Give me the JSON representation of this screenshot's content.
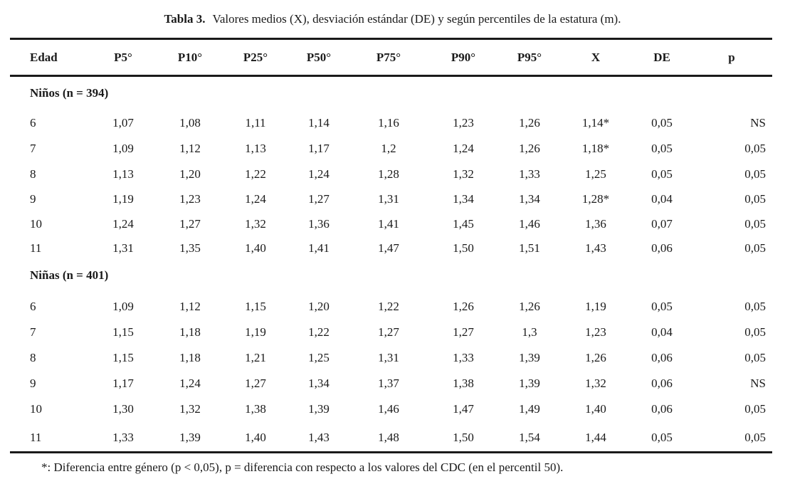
{
  "caption": {
    "label": "Tabla 3.",
    "text": "Valores medios (X), desviación estándar (DE) y según percentiles de la estatura (m)."
  },
  "headers": [
    "Edad",
    "P5°",
    "P10°",
    "P25°",
    "P50°",
    "P75°",
    "P90°",
    "P95°",
    "X",
    "DE",
    "p"
  ],
  "groups": [
    {
      "title": "Niños (n = 394)",
      "rows": [
        [
          "6",
          "1,07",
          "1,08",
          "1,11",
          "1,14",
          "1,16",
          "1,23",
          "1,26",
          "1,14*",
          "0,05",
          "NS"
        ],
        [
          "7",
          "1,09",
          "1,12",
          "1,13",
          "1,17",
          "1,2",
          "1,24",
          "1,26",
          "1,18*",
          "0,05",
          "0,05"
        ],
        [
          "8",
          "1,13",
          "1,20",
          "1,22",
          "1,24",
          "1,28",
          "1,32",
          "1,33",
          "1,25",
          "0,05",
          "0,05"
        ],
        [
          "9",
          "1,19",
          "1,23",
          "1,24",
          "1,27",
          "1,31",
          "1,34",
          "1,34",
          "1,28*",
          "0,04",
          "0,05"
        ],
        [
          "10",
          "1,24",
          "1,27",
          "1,32",
          "1,36",
          "1,41",
          "1,45",
          "1,46",
          "1,36",
          "0,07",
          "0,05"
        ],
        [
          "11",
          "1,31",
          "1,35",
          "1,40",
          "1,41",
          "1,47",
          "1,50",
          "1,51",
          "1,43",
          "0,06",
          "0,05"
        ]
      ]
    },
    {
      "title": "Niñas (n = 401)",
      "rows": [
        [
          "6",
          "1,09",
          "1,12",
          "1,15",
          "1,20",
          "1,22",
          "1,26",
          "1,26",
          "1,19",
          "0,05",
          "0,05"
        ],
        [
          "7",
          "1,15",
          "1,18",
          "1,19",
          "1,22",
          "1,27",
          "1,27",
          "1,3",
          "1,23",
          "0,04",
          "0,05"
        ],
        [
          "8",
          "1,15",
          "1,18",
          "1,21",
          "1,25",
          "1,31",
          "1,33",
          "1,39",
          "1,26",
          "0,06",
          "0,05"
        ],
        [
          "9",
          "1,17",
          "1,24",
          "1,27",
          "1,34",
          "1,37",
          "1,38",
          "1,39",
          "1,32",
          "0,06",
          "NS"
        ],
        [
          "10",
          "1,30",
          "1,32",
          "1,38",
          "1,39",
          "1,46",
          "1,47",
          "1,49",
          "1,40",
          "0,06",
          "0,05"
        ],
        [
          "11",
          "1,33",
          "1,39",
          "1,40",
          "1,43",
          "1,48",
          "1,50",
          "1,54",
          "1,44",
          "0,05",
          "0,05"
        ]
      ]
    }
  ],
  "footnote": "*: Diferencia entre género (p < 0,05), p = diferencia con respecto a los valores del CDC (en el percentil 50)."
}
